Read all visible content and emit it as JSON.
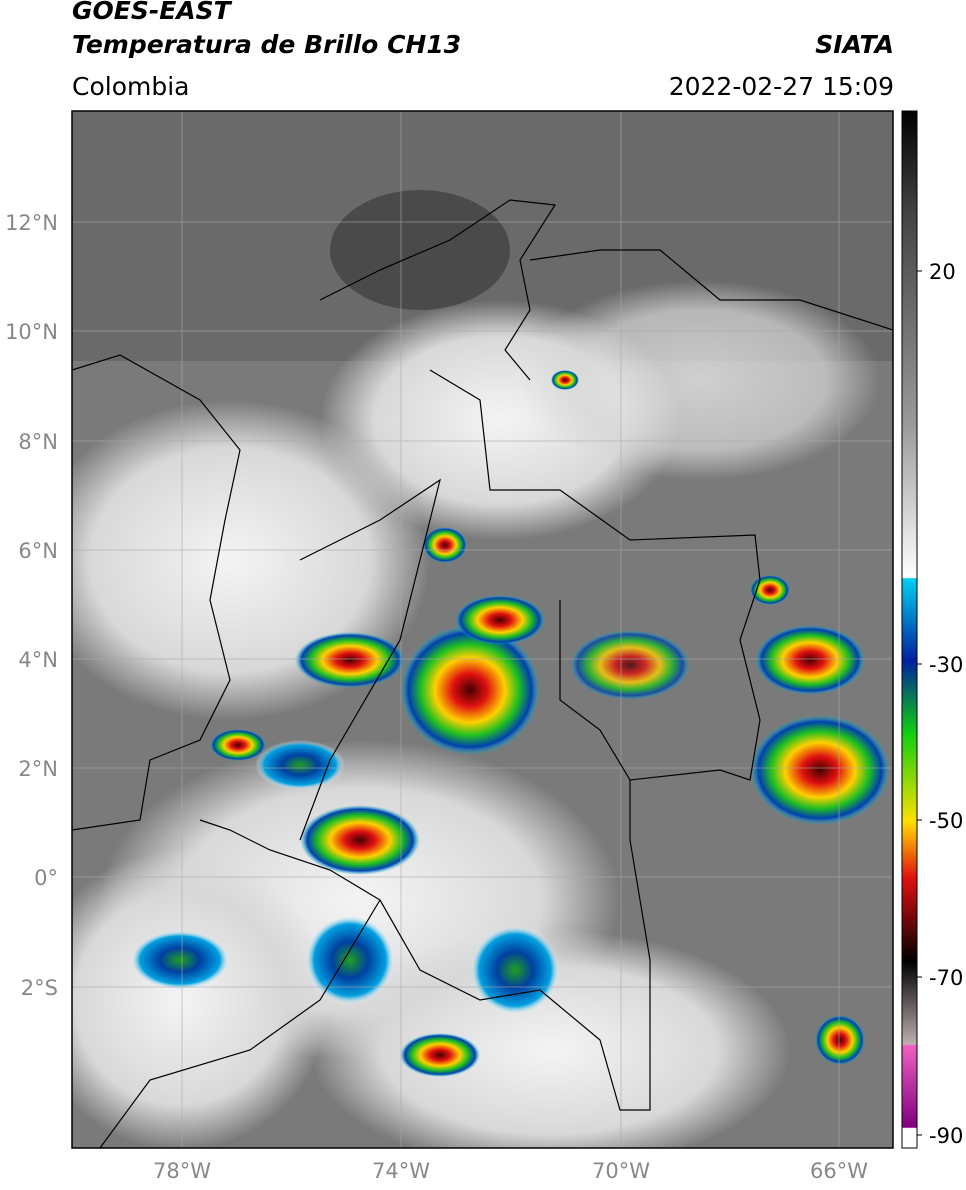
{
  "header": {
    "satellite": "GOES-EAST",
    "product": "Temperatura de Brillo CH13",
    "region": "Colombia",
    "agency": "SIATA",
    "datetime": "2022-02-27 15:09"
  },
  "map": {
    "lat_labels": [
      "12°N",
      "10°N",
      "8°N",
      "6°N",
      "4°N",
      "2°N",
      "0°",
      "2°S"
    ],
    "lon_labels": [
      "78°W",
      "74°W",
      "70°W",
      "66°W"
    ]
  },
  "colorbar": {
    "ticks": [
      "20",
      "-30",
      "-50",
      "-70",
      "-90"
    ]
  }
}
